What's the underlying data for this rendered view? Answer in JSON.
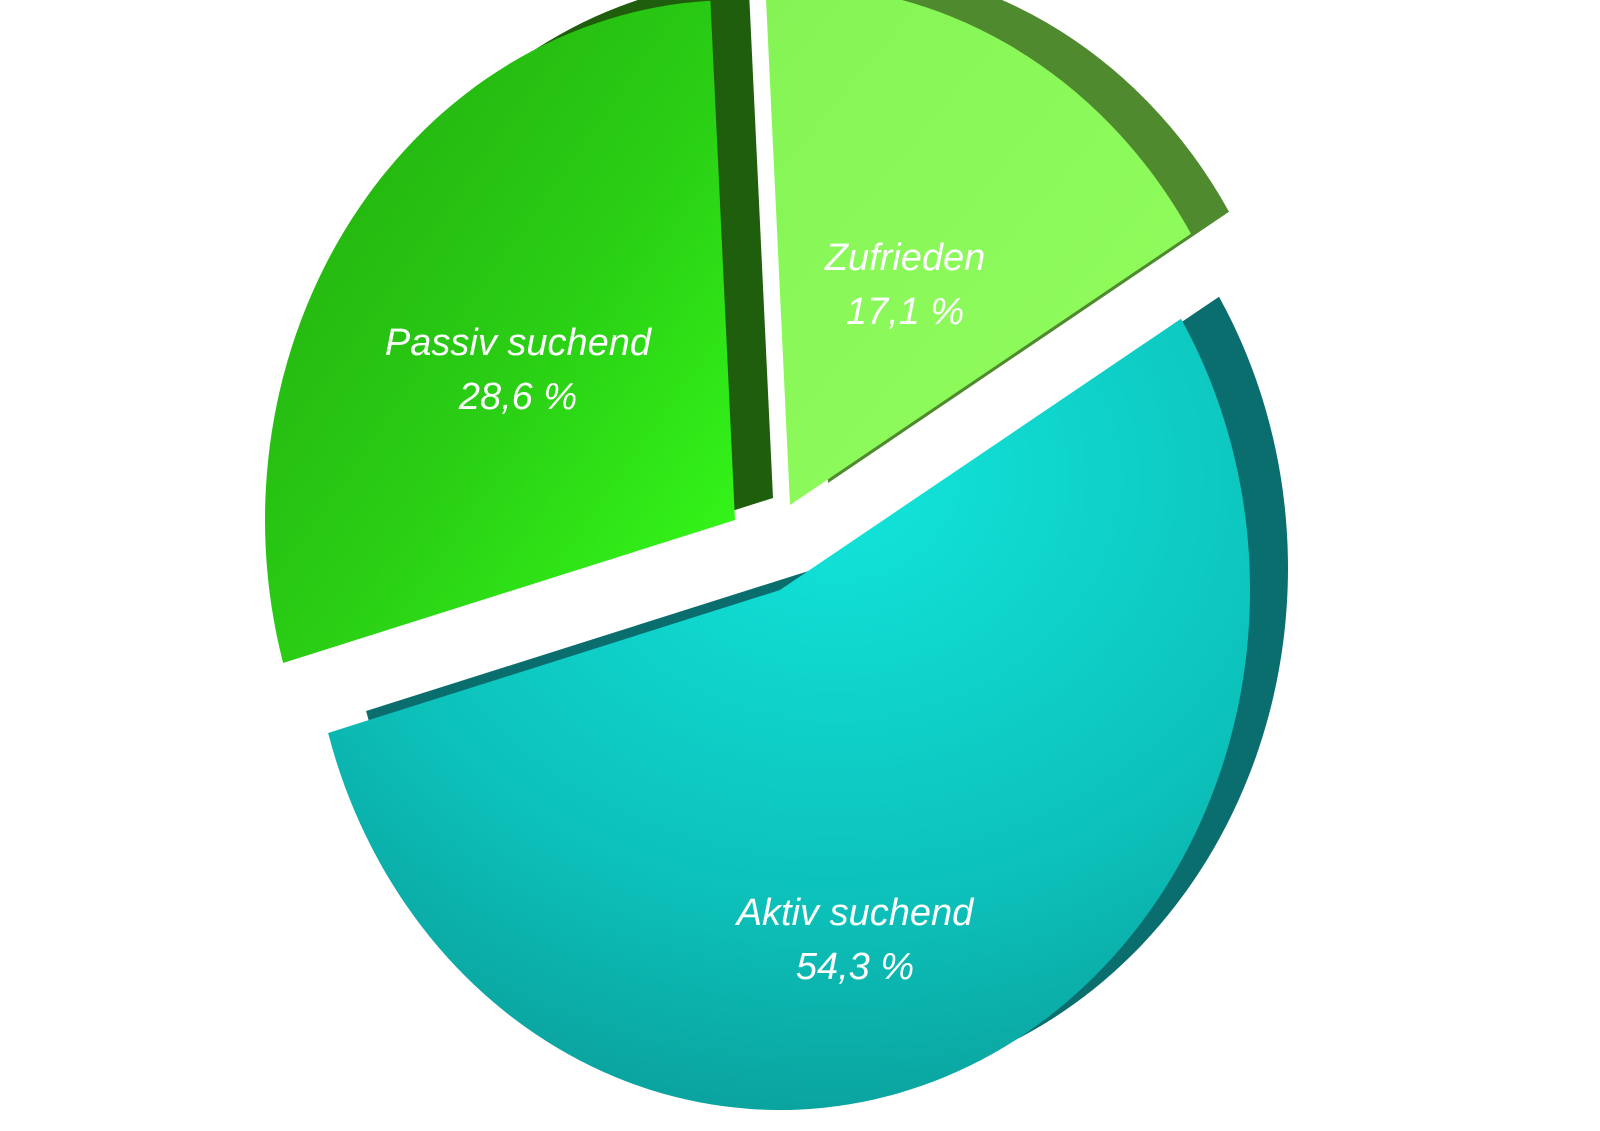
{
  "chart_data": {
    "type": "pie",
    "style": "3d-exploded",
    "slices": [
      {
        "label": "Aktiv suchend",
        "value": 54.3,
        "display": "54,3 %",
        "color": "#12CFC6"
      },
      {
        "label": "Passiv suchend",
        "value": 28.6,
        "display": "28,6 %",
        "color": "#2ED515"
      },
      {
        "label": "Zufrieden",
        "value": 17.1,
        "display": "17,1 %",
        "color": "#8CFC55"
      }
    ],
    "legend": "none",
    "labels_inside": true
  }
}
